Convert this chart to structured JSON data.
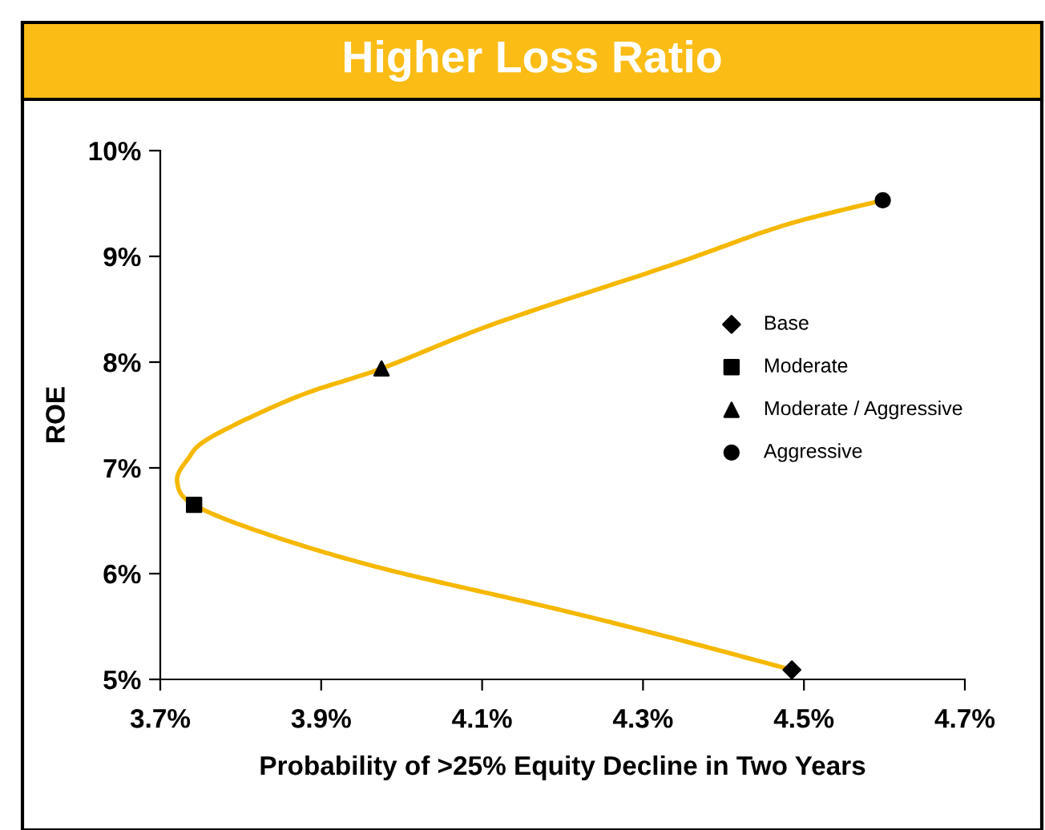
{
  "chart_data": {
    "type": "line",
    "title": "Higher Loss Ratio",
    "xlabel": "Probability of >25% Equity Decline in Two Years",
    "ylabel": "ROE",
    "xlim": [
      3.7,
      4.7
    ],
    "xticks": [
      {
        "value": 3.7,
        "label": "3.7%"
      },
      {
        "value": 3.9,
        "label": "3.9%"
      },
      {
        "value": 4.1,
        "label": "4.1%"
      },
      {
        "value": 4.3,
        "label": "4.3%"
      },
      {
        "value": 4.5,
        "label": "4.5%"
      },
      {
        "value": 4.7,
        "label": "4.7%"
      }
    ],
    "ylim": [
      5,
      10
    ],
    "yticks": [
      {
        "value": 5,
        "label": "5%"
      },
      {
        "value": 6,
        "label": "6%"
      },
      {
        "value": 7,
        "label": "7%"
      },
      {
        "value": 8,
        "label": "8%"
      },
      {
        "value": 9,
        "label": "9%"
      },
      {
        "value": 10,
        "label": "10%"
      }
    ],
    "grid": false,
    "legend": "right",
    "series": [
      {
        "color": "#f5b800",
        "marker": "none",
        "line_style": "solid",
        "x": [
          4.485,
          4.332,
          4.19,
          3.976,
          3.834,
          3.742,
          3.721,
          3.734,
          3.763,
          3.869,
          3.975,
          4.118,
          4.332,
          4.474,
          4.598
        ],
        "values": [
          5.09,
          5.4,
          5.67,
          6.05,
          6.37,
          6.65,
          6.87,
          7.08,
          7.29,
          7.67,
          7.94,
          8.37,
          8.91,
          9.29,
          9.53
        ]
      },
      {
        "type": "scatter",
        "name": "Base",
        "color": "#000000",
        "marker": "diamond",
        "x": [
          4.485
        ],
        "values": [
          5.09
        ]
      },
      {
        "type": "scatter",
        "name": "Moderate",
        "color": "#000000",
        "marker": "square",
        "x": [
          3.742
        ],
        "values": [
          6.65
        ]
      },
      {
        "type": "scatter",
        "name": "Moderate / Aggressive",
        "color": "#000000",
        "marker": "triangle",
        "x": [
          3.975
        ],
        "values": [
          7.94
        ]
      },
      {
        "type": "scatter",
        "name": "Aggressive",
        "color": "#000000",
        "marker": "circle",
        "x": [
          4.598
        ],
        "values": [
          9.53
        ]
      }
    ]
  }
}
